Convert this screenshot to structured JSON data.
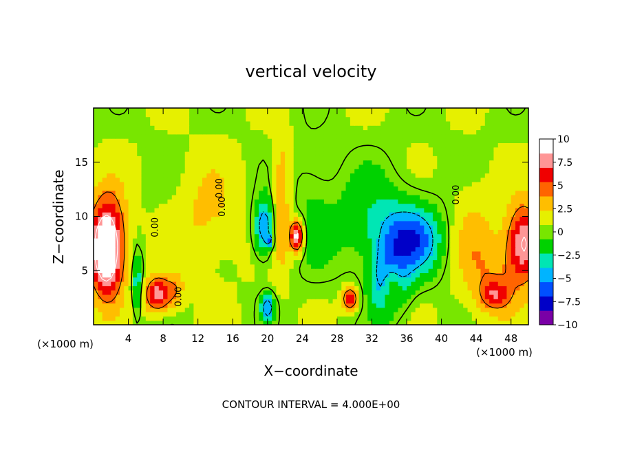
{
  "chart_data": {
    "type": "heatmap",
    "title": "vertical velocity",
    "xlabel": "X−coordinate",
    "ylabel": "Z−coordinate",
    "x_unit_label": "(×1000 m)",
    "y_unit_label": "(×1000 m)",
    "footer": "CONTOUR INTERVAL = 4.000E+00",
    "xlim": [
      0,
      50
    ],
    "ylim": [
      0,
      20
    ],
    "x_ticks": [
      4,
      8,
      12,
      16,
      20,
      24,
      28,
      32,
      36,
      40,
      44,
      48
    ],
    "y_ticks": [
      5,
      10,
      15
    ],
    "colorbar": {
      "min": -10,
      "max": 10,
      "tick_values": [
        10,
        7.5,
        5,
        2.5,
        0,
        -2.5,
        -5,
        -7.5,
        -10
      ],
      "tick_labels": [
        "10",
        "7.5",
        "5",
        "2.5",
        "0",
        "−2.5",
        "−5",
        "−7.5",
        "−10"
      ],
      "colors": [
        "#7a00a6",
        "#0000c8",
        "#0050ff",
        "#00b4ff",
        "#00e6b4",
        "#00d200",
        "#78e600",
        "#e6f000",
        "#ffbe00",
        "#ff6400",
        "#f00000",
        "#ff9696",
        "#ffffff"
      ]
    },
    "contour_labels": [
      {
        "text": "0.00",
        "x": 14.8,
        "y": 12.6
      },
      {
        "text": "0.00",
        "x": 15.1,
        "y": 10.9
      },
      {
        "text": "0.00",
        "x": 7.4,
        "y": 9.0
      },
      {
        "text": "0.00",
        "x": 10.1,
        "y": 2.6
      },
      {
        "text": "0.00",
        "x": 42.0,
        "y": 12.0
      }
    ],
    "features": [
      {
        "x": 1.6,
        "z": 7.2,
        "rx": 2.1,
        "rz": 4.6,
        "w": 9.5
      },
      {
        "x": 1.3,
        "z": 6.8,
        "rx": 1.3,
        "rz": 3.0,
        "w": 4.0
      },
      {
        "x": 7.4,
        "z": 2.8,
        "rx": 1.5,
        "rz": 1.6,
        "w": 7.5
      },
      {
        "x": 5.0,
        "z": 3.8,
        "rx": 0.6,
        "rz": 3.0,
        "w": -4.5
      },
      {
        "x": 9.5,
        "z": 3.2,
        "rx": 1.0,
        "rz": 1.6,
        "w": 2.5
      },
      {
        "x": 19.6,
        "z": 9.0,
        "rx": 1.2,
        "rz": 2.6,
        "w": -6.5
      },
      {
        "x": 20.0,
        "z": 1.6,
        "rx": 0.8,
        "rz": 1.2,
        "w": -6.0
      },
      {
        "x": 20.3,
        "z": 7.8,
        "rx": 0.4,
        "rz": 0.6,
        "w": -4.0
      },
      {
        "x": 21.6,
        "z": 11.5,
        "rx": 1.0,
        "rz": 6.5,
        "w": 3.5
      },
      {
        "x": 23.4,
        "z": 8.2,
        "rx": 0.8,
        "rz": 1.5,
        "w": 9.0
      },
      {
        "x": 29.5,
        "z": 2.4,
        "rx": 0.9,
        "rz": 1.1,
        "w": 7.0
      },
      {
        "x": 34.0,
        "z": 3.8,
        "rx": 1.8,
        "rz": 2.8,
        "w": -10.0
      },
      {
        "x": 36.5,
        "z": 7.8,
        "rx": 3.6,
        "rz": 3.2,
        "w": -6.5
      },
      {
        "x": 34.2,
        "z": 3.7,
        "rx": 1.3,
        "rz": 2.3,
        "w": 8.5
      },
      {
        "x": 32.0,
        "z": 9.5,
        "rx": 5.0,
        "rz": 4.8,
        "w": -2.5
      },
      {
        "x": 49.5,
        "z": 7.5,
        "rx": 2.0,
        "rz": 3.6,
        "w": 8.0
      },
      {
        "x": 46.0,
        "z": 4.0,
        "rx": 3.0,
        "rz": 4.0,
        "w": 2.6
      },
      {
        "x": 46.2,
        "z": 2.8,
        "rx": 1.6,
        "rz": 1.2,
        "w": 4.0
      },
      {
        "x": 13.0,
        "z": 10.0,
        "rx": 4.0,
        "rz": 5.0,
        "w": 2.0
      },
      {
        "x": 25.0,
        "z": 11.0,
        "rx": 2.5,
        "rz": 6.0,
        "w": -1.5
      },
      {
        "x": 43.5,
        "z": 8.5,
        "rx": 2.5,
        "rz": 5.0,
        "w": 2.0
      }
    ]
  }
}
